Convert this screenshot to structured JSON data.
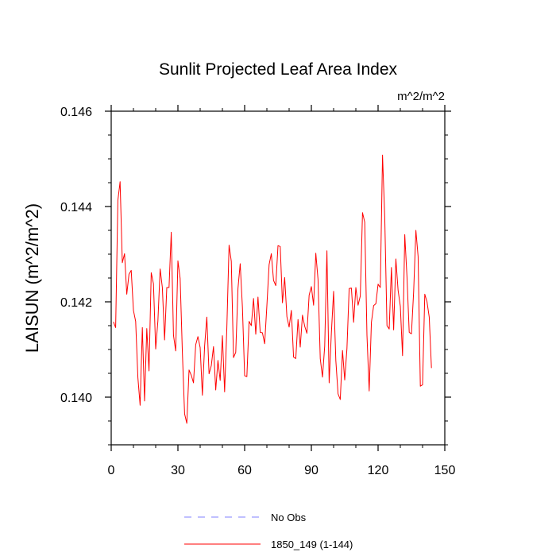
{
  "chart_data": {
    "type": "line",
    "title": "Sunlit Projected Leaf Area Index",
    "units_label": "m^2/m^2",
    "xlabel": "",
    "ylabel": "LAISUN  (m^2/m^2)",
    "xlim": [
      0,
      150
    ],
    "ylim": [
      0.139,
      0.146
    ],
    "xticks": [
      0,
      30,
      60,
      90,
      120,
      150
    ],
    "xtick_labels": [
      "0",
      "30",
      "60",
      "90",
      "120",
      "150"
    ],
    "yticks": [
      0.14,
      0.142,
      0.144,
      0.146
    ],
    "ytick_labels": [
      "0.140",
      "0.142",
      "0.144",
      "0.146"
    ],
    "x_minor_step": 10,
    "y_minor_step": 0.0005,
    "grid": false,
    "legend": {
      "position": "bottom",
      "entries": [
        {
          "label": "No Obs",
          "color": "#8080ff",
          "style": "dashed"
        },
        {
          "label": "1850_149 (1-144)",
          "color": "#ff0000",
          "style": "solid"
        }
      ]
    },
    "series": [
      {
        "name": "1850_149 (1-144)",
        "color": "#ff0000",
        "x_start": 1,
        "values": [
          0.14158,
          0.14146,
          0.14413,
          0.14452,
          0.14282,
          0.14301,
          0.14216,
          0.14258,
          0.14266,
          0.14182,
          0.14159,
          0.14041,
          0.13983,
          0.14146,
          0.13992,
          0.14144,
          0.14055,
          0.14261,
          0.14238,
          0.14101,
          0.1416,
          0.14269,
          0.1423,
          0.1412,
          0.1423,
          0.1423,
          0.14346,
          0.1413,
          0.14097,
          0.14286,
          0.14249,
          0.14094,
          0.13965,
          0.13945,
          0.14057,
          0.14046,
          0.1403,
          0.1411,
          0.14127,
          0.14104,
          0.14004,
          0.14107,
          0.14168,
          0.14049,
          0.14066,
          0.14106,
          0.14015,
          0.14077,
          0.14035,
          0.14129,
          0.14011,
          0.14146,
          0.14319,
          0.14285,
          0.14083,
          0.14094,
          0.14228,
          0.1428,
          0.14189,
          0.14045,
          0.14043,
          0.14159,
          0.1415,
          0.14207,
          0.14132,
          0.1421,
          0.14136,
          0.14135,
          0.14112,
          0.14192,
          0.14278,
          0.14301,
          0.14245,
          0.14234,
          0.14318,
          0.14316,
          0.14198,
          0.14251,
          0.14169,
          0.14147,
          0.14182,
          0.14084,
          0.14081,
          0.14163,
          0.14105,
          0.14172,
          0.14149,
          0.14134,
          0.14214,
          0.14232,
          0.14193,
          0.14302,
          0.14247,
          0.14081,
          0.14042,
          0.14107,
          0.14307,
          0.1403,
          0.14135,
          0.14222,
          0.14077,
          0.14007,
          0.13995,
          0.14098,
          0.14036,
          0.14102,
          0.14228,
          0.14229,
          0.14157,
          0.1423,
          0.14193,
          0.14212,
          0.14387,
          0.14367,
          0.1413,
          0.14013,
          0.14157,
          0.14192,
          0.14196,
          0.14237,
          0.1423,
          0.14508,
          0.14377,
          0.1415,
          0.14143,
          0.14272,
          0.14141,
          0.1429,
          0.14224,
          0.14191,
          0.14087,
          0.14341,
          0.14252,
          0.14136,
          0.14133,
          0.14222,
          0.1435,
          0.14295,
          0.14023,
          0.14026,
          0.14216,
          0.142,
          0.14168,
          0.14061
        ]
      },
      {
        "name": "No Obs",
        "color": "#8080ff",
        "values": []
      }
    ]
  }
}
